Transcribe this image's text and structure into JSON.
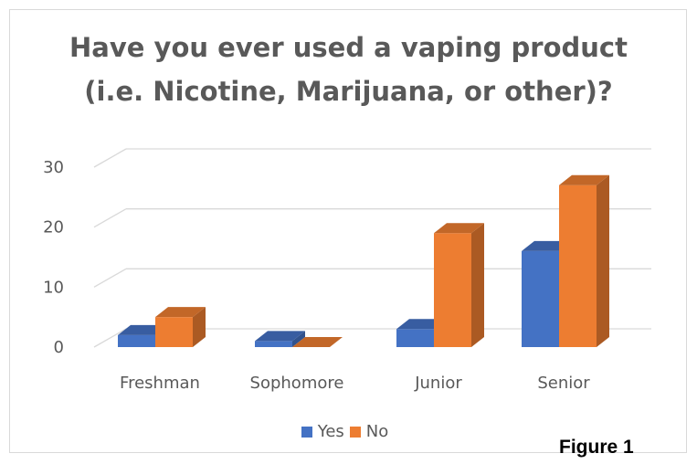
{
  "chart_data": {
    "type": "bar",
    "title_lines": [
      "Have you ever used a vaping product",
      "(i.e. Nicotine, Marijuana, or other)?"
    ],
    "categories": [
      "Freshman",
      "Sophomore",
      "Junior",
      "Senior"
    ],
    "series": [
      {
        "name": "Yes",
        "values": [
          2,
          1,
          3,
          16
        ],
        "color": "#4472c4"
      },
      {
        "name": "No",
        "values": [
          5,
          0,
          19,
          27
        ],
        "color": "#ed7d31"
      }
    ],
    "ylim": [
      0,
      30
    ],
    "yticks": [
      "0",
      "10",
      "20",
      "30"
    ],
    "grid": true,
    "legend_position": "bottom",
    "style": "3d-clustered-column"
  },
  "figure_label": "Figure 1"
}
